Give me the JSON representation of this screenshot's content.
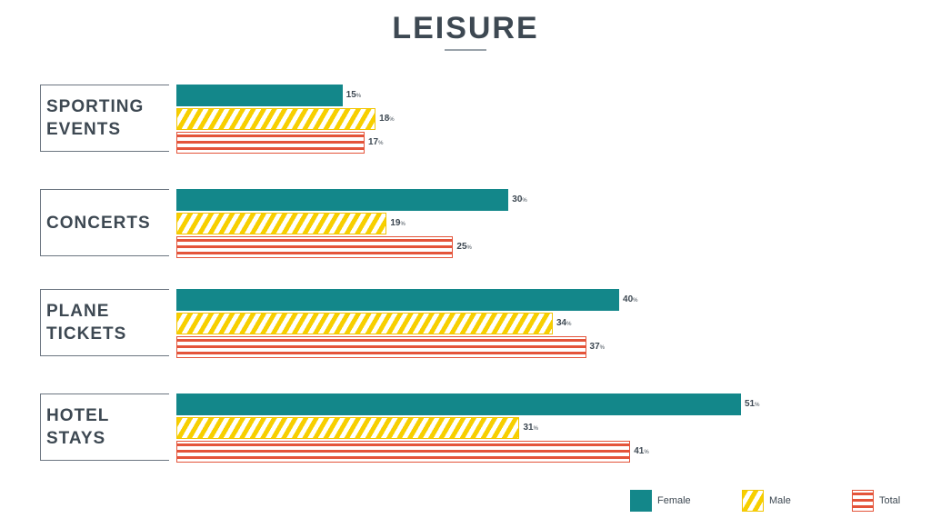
{
  "chart_data": {
    "type": "bar",
    "orientation": "horizontal",
    "title": "LEISURE",
    "value_suffix": "%",
    "categories": [
      "SPORTING\nEVENTS",
      "CONCERTS",
      "PLANE\nTICKETS",
      "HOTEL\nSTAYS"
    ],
    "series": [
      {
        "name": "Female",
        "key": "female",
        "color": "#13878a",
        "values": [
          15,
          30,
          40,
          51
        ]
      },
      {
        "name": "Male",
        "key": "male",
        "color": "#f7cf00",
        "values": [
          18,
          19,
          34,
          31
        ]
      },
      {
        "name": "Total",
        "key": "total",
        "color": "#e4543a",
        "values": [
          17,
          25,
          37,
          41
        ]
      }
    ],
    "xlim": [
      0,
      51
    ],
    "grid": false,
    "legend_position": "bottom-right"
  }
}
